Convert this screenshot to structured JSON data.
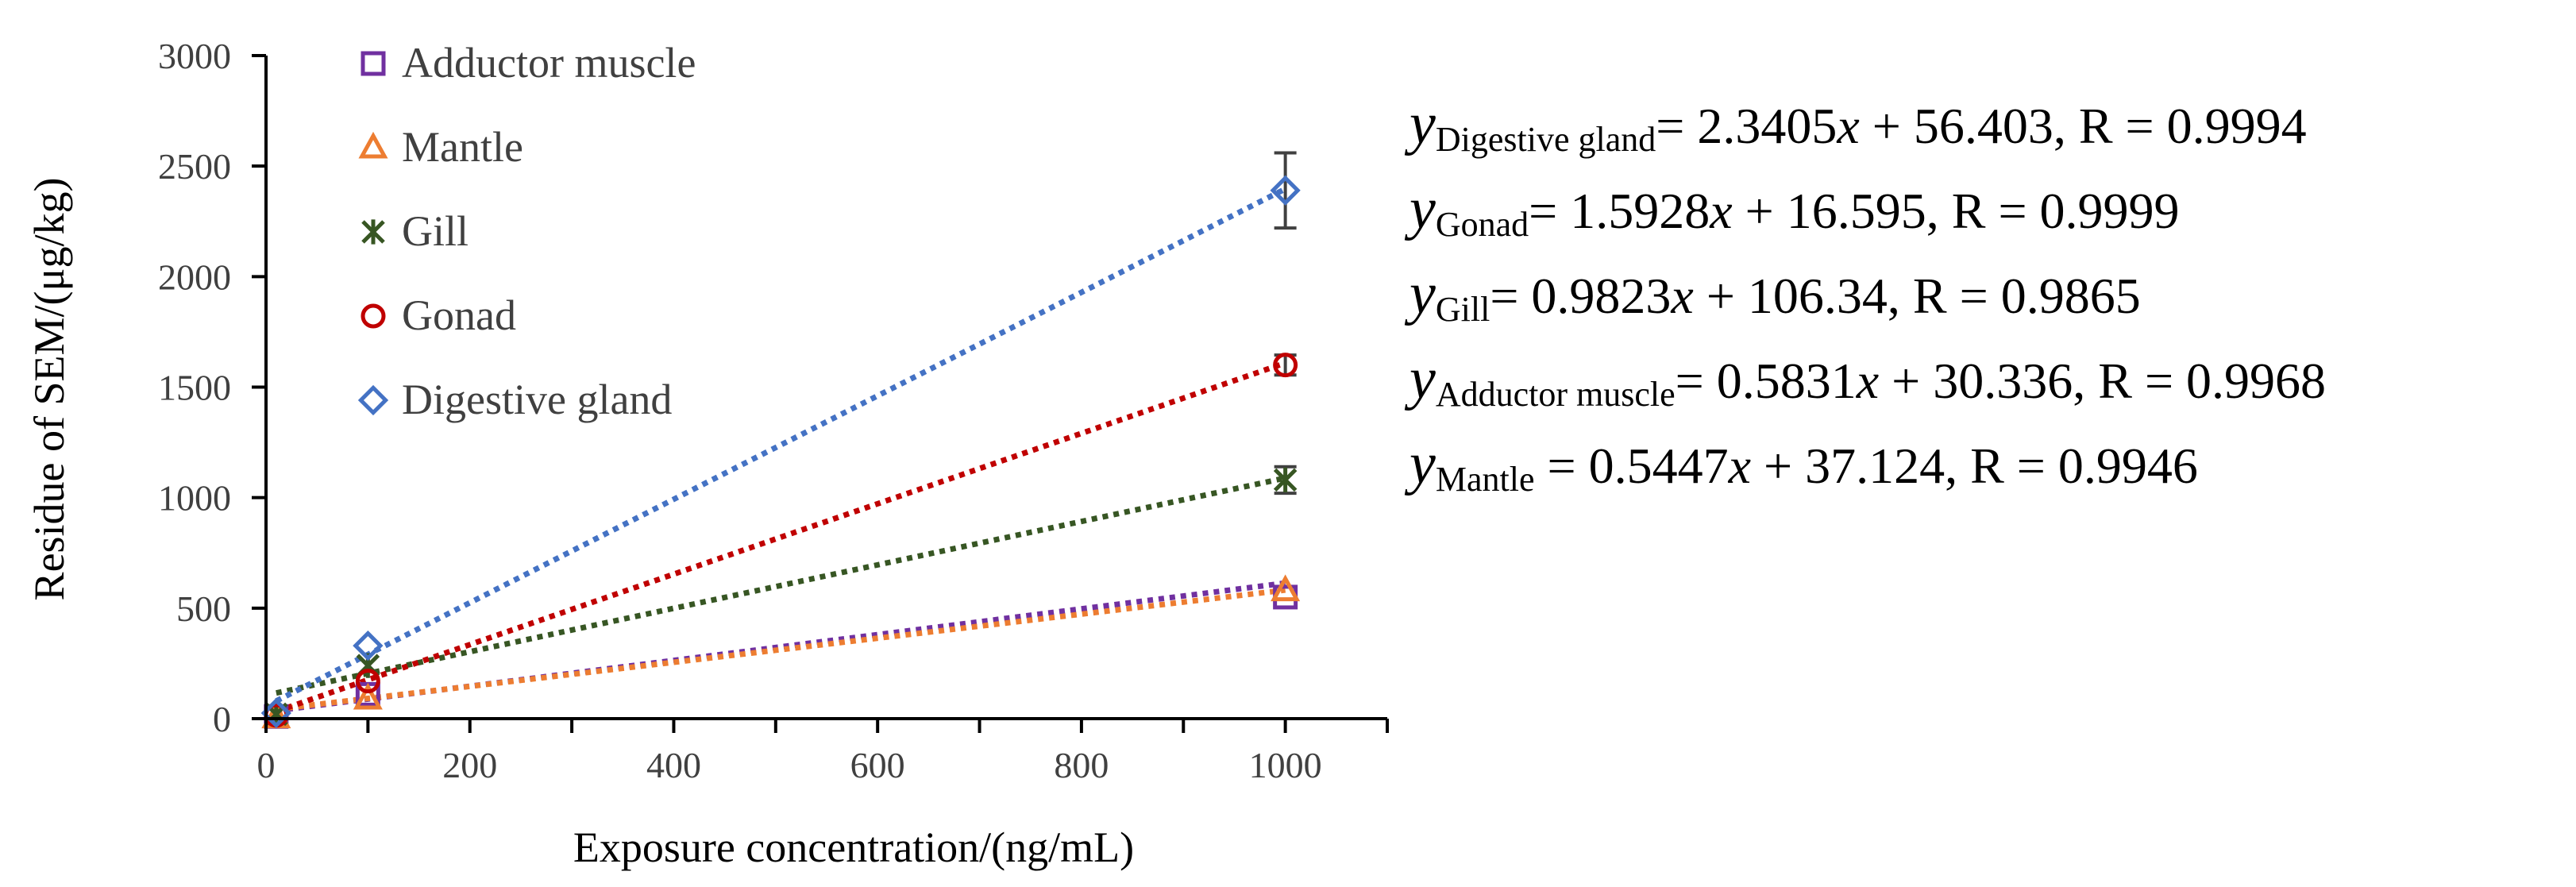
{
  "chart_data": {
    "type": "scatter",
    "title": "",
    "xlabel": "Exposure concentration/(ng/mL)",
    "ylabel": "Residue of SEM/(μg/kg)",
    "xlim": [
      0,
      1100
    ],
    "ylim": [
      0,
      3000
    ],
    "xticks": [
      0,
      200,
      400,
      600,
      800,
      1000
    ],
    "yticks": [
      0,
      500,
      1000,
      1500,
      2000,
      2500,
      3000
    ],
    "xtick_labels": [
      "0",
      "200",
      "400",
      "600",
      "800",
      "1000"
    ],
    "ytick_labels": [
      "0",
      "500",
      "1000",
      "1500",
      "2000",
      "2500",
      "3000"
    ],
    "grid": false,
    "legend_position": "top-left",
    "x": [
      10,
      100,
      1000
    ],
    "series": [
      {
        "name": "Adductor muscle",
        "marker": "square",
        "color": "#7030A0",
        "values": [
          10,
          110,
          550
        ],
        "errors": [
          0,
          0,
          0
        ],
        "fit": {
          "slope": 0.5831,
          "intercept": 30.336
        }
      },
      {
        "name": "Mantle",
        "marker": "triangle",
        "color": "#ED7D31",
        "values": [
          5,
          90,
          580
        ],
        "errors": [
          0,
          0,
          0
        ],
        "fit": {
          "slope": 0.5447,
          "intercept": 37.124
        }
      },
      {
        "name": "Gill",
        "marker": "asterisk",
        "color": "#375623",
        "values": [
          20,
          240,
          1080
        ],
        "errors": [
          0,
          0,
          60
        ],
        "fit": {
          "slope": 0.9823,
          "intercept": 106.34
        }
      },
      {
        "name": "Gonad",
        "marker": "circle",
        "color": "#C00000",
        "values": [
          15,
          170,
          1600
        ],
        "errors": [
          0,
          0,
          45
        ],
        "fit": {
          "slope": 1.5928,
          "intercept": 16.595
        }
      },
      {
        "name": "Digestive gland",
        "marker": "diamond",
        "color": "#4472C4",
        "values": [
          25,
          330,
          2390
        ],
        "errors": [
          0,
          0,
          170
        ],
        "fit": {
          "slope": 2.3405,
          "intercept": 56.403
        }
      }
    ],
    "equations": [
      {
        "sub": "Digestive gland",
        "rest": "= 2.3405",
        "x": "x",
        "tail": " + 56.403, R = 0.9994"
      },
      {
        "sub": "Gonad",
        "rest": "= 1.5928",
        "x": "x",
        "tail": " + 16.595, R = 0.9999"
      },
      {
        "sub": "Gill",
        "rest": "= 0.9823",
        "x": "x",
        "tail": " + 106.34, R = 0.9865"
      },
      {
        "sub": "Adductor muscle",
        "rest": "= 0.5831",
        "x": "x",
        "tail": " + 30.336, R = 0.9968"
      },
      {
        "sub": "Mantle",
        "rest": " = 0.5447",
        "x": "x",
        "tail": " + 37.124, R = 0.9946"
      }
    ],
    "equation_y": "y"
  }
}
